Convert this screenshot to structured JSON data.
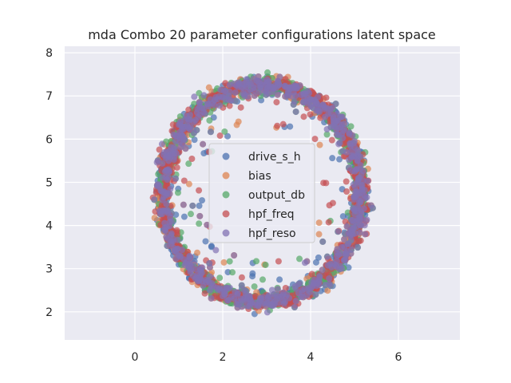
{
  "chart_data": {
    "type": "scatter",
    "title": "mda Combo 20 parameter configurations latent space",
    "xlabel": "",
    "ylabel": "",
    "xlim": [
      -1.6,
      7.4
    ],
    "ylim": [
      1.35,
      8.15
    ],
    "xticks": [
      0,
      2,
      4,
      6
    ],
    "yticks": [
      2,
      3,
      4,
      5,
      6,
      7,
      8
    ],
    "grid": true,
    "legend_position": "center",
    "ring": {
      "center": [
        2.9,
        4.75
      ],
      "outer_radii": [
        2.75,
        3.05
      ],
      "inner_radii": [
        1.95,
        2.35
      ],
      "approx_points_per_series": 650
    },
    "series": [
      {
        "name": "drive_s_h",
        "color": "#4C72B0"
      },
      {
        "name": "bias",
        "color": "#DD8452"
      },
      {
        "name": "output_db",
        "color": "#55A868"
      },
      {
        "name": "hpf_freq",
        "color": "#C44E52"
      },
      {
        "name": "hpf_reso",
        "color": "#8172B3"
      }
    ]
  }
}
